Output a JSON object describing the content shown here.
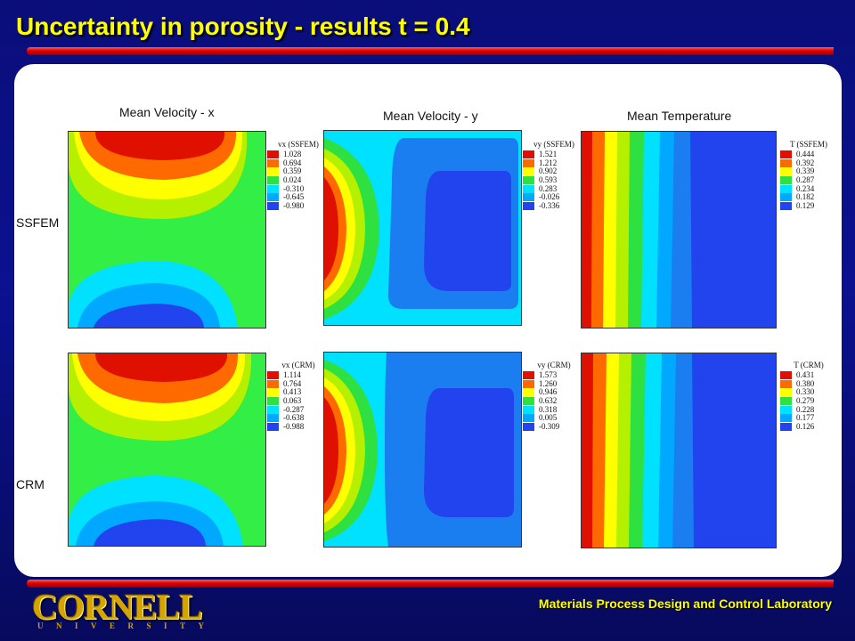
{
  "slide": {
    "title": "Uncertainty in porosity - results t = 0.4",
    "footer_lab": "Materials Process Design and Control Laboratory",
    "logo_word": "CORNELL",
    "logo_sub": "UNIVERSITY"
  },
  "columns": {
    "vx": "Mean Velocity - x",
    "vy": "Mean Velocity - y",
    "temp": "Mean Temperature"
  },
  "rows": {
    "ssfem": "SSFEM",
    "crm": "CRM"
  },
  "colors": {
    "scale": [
      "#e01000",
      "#ff6a00",
      "#ffff00",
      "#b4f000",
      "#2ee040",
      "#00e0ff",
      "#00a8ff",
      "#2244ee"
    ],
    "vx_background": "#33ee44",
    "vy_background": "#1a7ef0",
    "title_yellow": "#ffff00",
    "rule_red": "#e00000",
    "logo_gold": "#d6a400"
  },
  "legends": {
    "vx_ssfem": {
      "title": "vx (SSFEM)",
      "values": [
        "1.028",
        "0.694",
        "0.359",
        "0.024",
        "-0.310",
        "-0.645",
        "-0.980"
      ]
    },
    "vy_ssfem": {
      "title": "vy (SSFEM)",
      "values": [
        "1.521",
        "1.212",
        "0.902",
        "0.593",
        "0.283",
        "-0.026",
        "-0.336"
      ]
    },
    "t_ssfem": {
      "title": "T (SSFEM)",
      "values": [
        "0.444",
        "0.392",
        "0.339",
        "0.287",
        "0.234",
        "0.182",
        "0.129"
      ]
    },
    "vx_crm": {
      "title": "vx (CRM)",
      "values": [
        "1.114",
        "0.764",
        "0.413",
        "0.063",
        "-0.287",
        "-0.638",
        "-0.988"
      ]
    },
    "vy_crm": {
      "title": "vy (CRM)",
      "values": [
        "1.573",
        "1.260",
        "0.946",
        "0.632",
        "0.318",
        "0.005",
        "-0.309"
      ]
    },
    "t_crm": {
      "title": "T (CRM)",
      "values": [
        "0.431",
        "0.380",
        "0.330",
        "0.279",
        "0.228",
        "0.177",
        "0.126"
      ]
    }
  }
}
